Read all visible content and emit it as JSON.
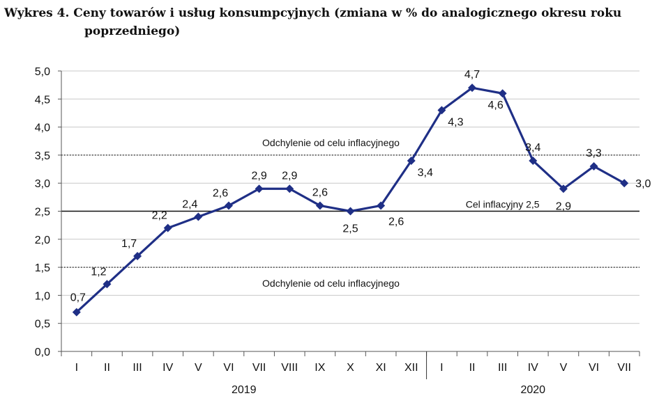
{
  "chart_data": {
    "type": "line",
    "title_line1": "Wykres 4. Ceny towarów i usług konsumpcyjnych (zmiana w % do analogicznego okresu roku",
    "title_line2": "poprzedniego)",
    "categories": [
      "I",
      "II",
      "III",
      "IV",
      "V",
      "VI",
      "VII",
      "VIII",
      "IX",
      "X",
      "XI",
      "XII",
      "I",
      "II",
      "III",
      "IV",
      "V",
      "VI",
      "VII"
    ],
    "values": [
      0.7,
      1.2,
      1.7,
      2.2,
      2.4,
      2.6,
      2.9,
      2.9,
      2.6,
      2.5,
      2.6,
      3.4,
      4.3,
      4.7,
      4.6,
      3.4,
      2.9,
      3.3,
      3.0
    ],
    "value_labels": [
      "0,7",
      "1,2",
      "1,7",
      "2,2",
      "2,4",
      "2,6",
      "2,9",
      "2,9",
      "2,6",
      "2,5",
      "2,6",
      "3,4",
      "4,3",
      "4,7",
      "4,6",
      "3,4",
      "2,9",
      "3,3",
      "3,0"
    ],
    "y_ticks": [
      "0,0",
      "0,5",
      "1,0",
      "1,5",
      "2,0",
      "2,5",
      "3,0",
      "3,5",
      "4,0",
      "4,5",
      "5,0"
    ],
    "ylim": [
      0,
      5
    ],
    "years": [
      {
        "label": "2019",
        "from": 0,
        "to": 11
      },
      {
        "label": "2020",
        "from": 12,
        "to": 18
      }
    ],
    "reference_lines": [
      {
        "value": 2.5,
        "style": "solid",
        "label": "Cel inflacyjny 2,5"
      },
      {
        "value": 3.5,
        "style": "dotted",
        "label": "Odchylenie od celu inflacyjnego"
      },
      {
        "value": 1.5,
        "style": "dotted",
        "label": "Odchylenie od celu inflacyjnego"
      }
    ],
    "series_color": "#1f2f86",
    "grid": true
  }
}
